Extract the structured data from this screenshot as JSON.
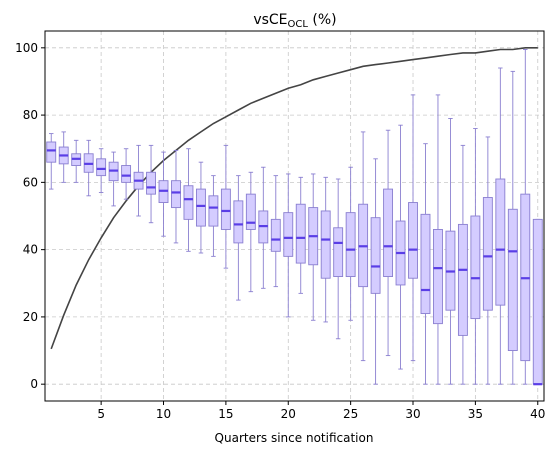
{
  "chart_data": {
    "type": "box",
    "title": "vsCE",
    "title_subscript": "OCL",
    "title_suffix": " (%)",
    "xlabel": "Quarters since notification",
    "ylabel": "",
    "xlim": [
      0.5,
      40.5
    ],
    "ylim": [
      -5,
      105
    ],
    "xticks": [
      5,
      10,
      15,
      20,
      25,
      30,
      35,
      40
    ],
    "yticks": [
      0,
      20,
      40,
      60,
      80,
      100
    ],
    "grid": true,
    "colors": {
      "box_fill": "#d4ccff",
      "box_edge": "#8a7fd0",
      "median": "#5a3ee6",
      "whisker": "#8a7fd0",
      "curve": "#444444",
      "grid": "#c8c8c8"
    },
    "boxes": [
      {
        "x": 1,
        "low": 58,
        "q1": 66,
        "median": 69.5,
        "q3": 72,
        "high": 74.5
      },
      {
        "x": 2,
        "low": 60,
        "q1": 65.5,
        "median": 68,
        "q3": 70.5,
        "high": 75
      },
      {
        "x": 3,
        "low": 60,
        "q1": 65,
        "median": 67,
        "q3": 68.5,
        "high": 72.5
      },
      {
        "x": 4,
        "low": 56,
        "q1": 63,
        "median": 65.5,
        "q3": 68.5,
        "high": 72.5
      },
      {
        "x": 5,
        "low": 57,
        "q1": 62,
        "median": 64,
        "q3": 67,
        "high": 70
      },
      {
        "x": 6,
        "low": 53,
        "q1": 60.5,
        "median": 63.5,
        "q3": 66,
        "high": 69
      },
      {
        "x": 7,
        "low": 55,
        "q1": 60,
        "median": 62,
        "q3": 65,
        "high": 70
      },
      {
        "x": 8,
        "low": 50,
        "q1": 58,
        "median": 60.5,
        "q3": 63,
        "high": 71
      },
      {
        "x": 9,
        "low": 48,
        "q1": 56.5,
        "median": 58.5,
        "q3": 63,
        "high": 71
      },
      {
        "x": 10,
        "low": 44,
        "q1": 54,
        "median": 57.5,
        "q3": 60.5,
        "high": 69
      },
      {
        "x": 11,
        "low": 42,
        "q1": 52.5,
        "median": 57,
        "q3": 60.5,
        "high": 69.5
      },
      {
        "x": 12,
        "low": 39.5,
        "q1": 49,
        "median": 55,
        "q3": 59,
        "high": 70
      },
      {
        "x": 13,
        "low": 39,
        "q1": 47,
        "median": 53,
        "q3": 58,
        "high": 66
      },
      {
        "x": 14,
        "low": 38,
        "q1": 47,
        "median": 52.5,
        "q3": 56,
        "high": 62
      },
      {
        "x": 15,
        "low": 34.5,
        "q1": 46,
        "median": 51.5,
        "q3": 58,
        "high": 71
      },
      {
        "x": 16,
        "low": 25,
        "q1": 42,
        "median": 47.5,
        "q3": 54.5,
        "high": 62
      },
      {
        "x": 17,
        "low": 27.5,
        "q1": 46,
        "median": 48,
        "q3": 56.5,
        "high": 63
      },
      {
        "x": 18,
        "low": 28.5,
        "q1": 42,
        "median": 47,
        "q3": 51.5,
        "high": 64.5
      },
      {
        "x": 19,
        "low": 29,
        "q1": 39.5,
        "median": 43,
        "q3": 49,
        "high": 62
      },
      {
        "x": 20,
        "low": 20,
        "q1": 38,
        "median": 43.5,
        "q3": 51,
        "high": 62.5
      },
      {
        "x": 21,
        "low": 27,
        "q1": 36,
        "median": 43.5,
        "q3": 53.5,
        "high": 61.5
      },
      {
        "x": 22,
        "low": 19,
        "q1": 35.5,
        "median": 44,
        "q3": 52.5,
        "high": 62.5
      },
      {
        "x": 23,
        "low": 18.5,
        "q1": 31.5,
        "median": 43,
        "q3": 51.5,
        "high": 61.5
      },
      {
        "x": 24,
        "low": 13.5,
        "q1": 32,
        "median": 42,
        "q3": 46.5,
        "high": 61
      },
      {
        "x": 25,
        "low": 19,
        "q1": 32,
        "median": 40,
        "q3": 51,
        "high": 64.5
      },
      {
        "x": 26,
        "low": 7,
        "q1": 29,
        "median": 41,
        "q3": 53.5,
        "high": 75
      },
      {
        "x": 27,
        "low": 0,
        "q1": 27,
        "median": 35,
        "q3": 49.5,
        "high": 67
      },
      {
        "x": 28,
        "low": 8.5,
        "q1": 32,
        "median": 41,
        "q3": 58,
        "high": 75.5
      },
      {
        "x": 29,
        "low": 4.5,
        "q1": 29.5,
        "median": 39,
        "q3": 48.5,
        "high": 77
      },
      {
        "x": 30,
        "low": 7,
        "q1": 31.5,
        "median": 40,
        "q3": 54,
        "high": 86
      },
      {
        "x": 31,
        "low": 0,
        "q1": 21,
        "median": 28,
        "q3": 50.5,
        "high": 71.5
      },
      {
        "x": 32,
        "low": 0,
        "q1": 18,
        "median": 34.5,
        "q3": 46,
        "high": 86
      },
      {
        "x": 33,
        "low": 0,
        "q1": 22,
        "median": 33.5,
        "q3": 45.5,
        "high": 79
      },
      {
        "x": 34,
        "low": 0,
        "q1": 14.5,
        "median": 34,
        "q3": 47.5,
        "high": 71
      },
      {
        "x": 35,
        "low": 0,
        "q1": 19.5,
        "median": 31.5,
        "q3": 50,
        "high": 76
      },
      {
        "x": 36,
        "low": 0,
        "q1": 22,
        "median": 38,
        "q3": 55.5,
        "high": 73.5
      },
      {
        "x": 37,
        "low": 0,
        "q1": 23.5,
        "median": 40,
        "q3": 61,
        "high": 94
      },
      {
        "x": 38,
        "low": 0,
        "q1": 10,
        "median": 39.5,
        "q3": 52,
        "high": 93
      },
      {
        "x": 39,
        "low": 0,
        "q1": 7,
        "median": 31.5,
        "q3": 56.5,
        "high": 99.5
      },
      {
        "x": 40,
        "low": 0,
        "q1": 0,
        "median": 0,
        "q3": 49,
        "high": 49
      }
    ],
    "curve": {
      "x": [
        1,
        2,
        3,
        4,
        5,
        6,
        7,
        8,
        9,
        10,
        11,
        12,
        13,
        14,
        15,
        16,
        17,
        18,
        19,
        20,
        21,
        22,
        23,
        24,
        25,
        26,
        27,
        28,
        29,
        30,
        31,
        32,
        33,
        34,
        35,
        36,
        37,
        38,
        39,
        40
      ],
      "y": [
        10.5,
        20.5,
        29.5,
        37,
        43.5,
        49.5,
        54.5,
        59,
        63,
        66.5,
        69.5,
        72.5,
        75,
        77.5,
        79.5,
        81.5,
        83.5,
        85,
        86.5,
        88,
        89,
        90.5,
        91.5,
        92.5,
        93.5,
        94.5,
        95,
        95.5,
        96,
        96.5,
        97,
        97.5,
        98,
        98.5,
        98.5,
        99,
        99.5,
        99.5,
        100,
        100
      ]
    }
  }
}
